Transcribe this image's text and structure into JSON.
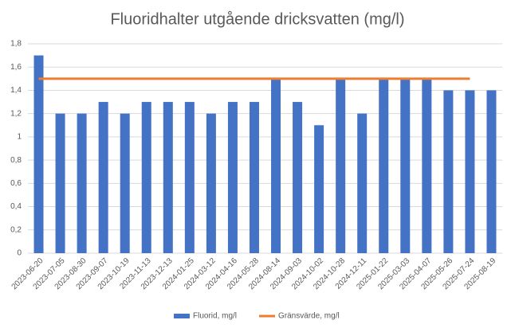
{
  "chart_data": {
    "type": "bar",
    "title": "Fluoridhalter utgående dricksvatten (mg/l)",
    "categories": [
      "2023-06-20",
      "2023-07-05",
      "2023-08-30",
      "2023-09-07",
      "2023-10-19",
      "2023-11-13",
      "2023-12-13",
      "2024-01-25",
      "2024-03-12",
      "2024-04-16",
      "2024-05-28",
      "2024-08-14",
      "2024-09-03",
      "2024-10-02",
      "2024-10-28",
      "2024-12-11",
      "2025-01-22",
      "2025-03-03",
      "2025-04-07",
      "2025-05-26",
      "2025-07-24",
      "2025-08-19"
    ],
    "series": [
      {
        "name": "Fluorid, mg/l",
        "color": "#4472c4",
        "type": "bar",
        "values": [
          1.7,
          1.2,
          1.2,
          1.3,
          1.2,
          1.3,
          1.3,
          1.3,
          1.2,
          1.3,
          1.3,
          1.5,
          1.3,
          1.1,
          1.5,
          1.2,
          1.5,
          1.5,
          1.5,
          1.4,
          1.4,
          1.4
        ]
      },
      {
        "name": "Gränsvärde, mg/l",
        "color": "#ed7d31",
        "type": "line",
        "values": [
          1.5,
          1.5,
          1.5,
          1.5,
          1.5,
          1.5,
          1.5,
          1.5,
          1.5,
          1.5,
          1.5,
          1.5,
          1.5,
          1.5,
          1.5,
          1.5,
          1.5,
          1.5,
          1.5,
          1.5,
          1.5,
          null
        ]
      }
    ],
    "ylim": [
      0,
      1.8
    ],
    "yticks": [
      0,
      {
        "value": 0.2,
        "label": "0,2"
      },
      {
        "value": 0.4,
        "label": "0,4"
      },
      {
        "value": 0.6,
        "label": "0,6"
      },
      {
        "value": 0.8,
        "label": "0,8"
      },
      1,
      {
        "value": 1.2,
        "label": "1,2"
      },
      {
        "value": 1.4,
        "label": "1,4"
      },
      {
        "value": 1.6,
        "label": "1,6"
      },
      {
        "value": 1.8,
        "label": "1,8"
      }
    ],
    "grid": true,
    "legend": "bottom"
  }
}
